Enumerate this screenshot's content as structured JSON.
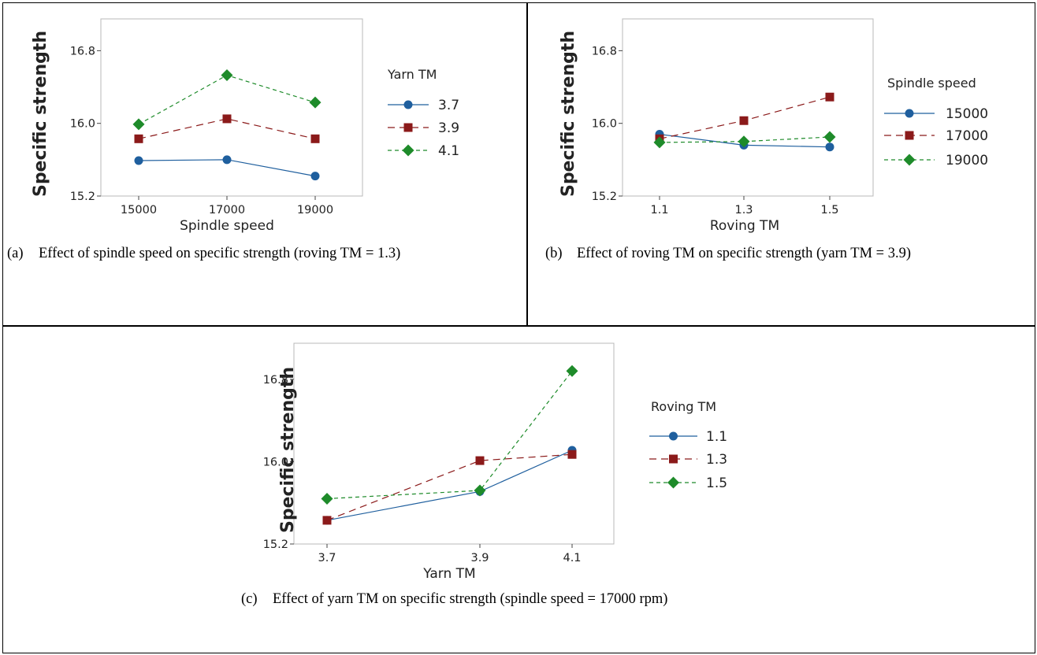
{
  "colors": {
    "blue": "#1f5f9e",
    "red": "#8b1a1a",
    "green": "#1e8b2a"
  },
  "panels": [
    {
      "id": "a",
      "caption_label": "(a)",
      "caption_text": "Effect of spindle speed on specific strength (roving TM = 1.3)"
    },
    {
      "id": "b",
      "caption_label": "(b)",
      "caption_text": "Effect of roving TM on specific strength (yarn TM = 3.9)"
    },
    {
      "id": "c",
      "caption_label": "(c)",
      "caption_text": "Effect of  yarn TM on specific strength (spindle speed = 17000 rpm)"
    }
  ],
  "chart_data": [
    {
      "type": "line",
      "xlabel": "Spindle speed",
      "ylabel": "Specific strength",
      "categories": [
        "15000",
        "17000",
        "19000"
      ],
      "yticks": [
        "15.2",
        "16.0",
        "16.8"
      ],
      "ylim": [
        15.2,
        17.15
      ],
      "legend_title": "Yarn TM",
      "legend_position": "right",
      "series": [
        {
          "name": "3.7",
          "color": "blue",
          "marker": "circle",
          "dash": "solid",
          "values": [
            15.59,
            15.6,
            15.42
          ]
        },
        {
          "name": "3.9",
          "color": "red",
          "marker": "square",
          "dash": "long-dash",
          "values": [
            15.83,
            16.05,
            15.83
          ]
        },
        {
          "name": "4.1",
          "color": "green",
          "marker": "diamond",
          "dash": "short-dash",
          "values": [
            15.99,
            16.53,
            16.23
          ]
        }
      ]
    },
    {
      "type": "line",
      "xlabel": "Roving TM",
      "ylabel": "Specific strength",
      "categories": [
        "1.1",
        "1.3",
        "1.5"
      ],
      "yticks": [
        "15.2",
        "16.0",
        "16.8"
      ],
      "ylim": [
        15.2,
        17.15
      ],
      "legend_title": "Spindle speed",
      "legend_position": "right",
      "series": [
        {
          "name": "15000",
          "color": "blue",
          "marker": "circle",
          "dash": "solid",
          "values": [
            15.88,
            15.76,
            15.74
          ]
        },
        {
          "name": "17000",
          "color": "red",
          "marker": "square",
          "dash": "long-dash",
          "values": [
            15.83,
            16.03,
            16.29
          ]
        },
        {
          "name": "19000",
          "color": "green",
          "marker": "diamond",
          "dash": "short-dash",
          "values": [
            15.79,
            15.8,
            15.85
          ]
        }
      ]
    },
    {
      "type": "line",
      "xlabel": "Yarn TM",
      "ylabel": "Specific strength",
      "categories": [
        "3.7",
        "3.9",
        "4.1"
      ],
      "yticks": [
        "15.2",
        "16.0",
        "16.8"
      ],
      "ylim": [
        15.2,
        17.15
      ],
      "legend_title": "Roving TM",
      "legend_position": "right",
      "series": [
        {
          "name": "1.1",
          "color": "blue",
          "marker": "circle",
          "dash": "solid",
          "values": [
            15.43,
            15.71,
            16.11
          ]
        },
        {
          "name": "1.3",
          "color": "red",
          "marker": "square",
          "dash": "long-dash",
          "values": [
            15.43,
            16.01,
            16.07
          ]
        },
        {
          "name": "1.5",
          "color": "green",
          "marker": "diamond",
          "dash": "short-dash",
          "values": [
            15.64,
            15.72,
            16.88
          ]
        }
      ]
    }
  ]
}
